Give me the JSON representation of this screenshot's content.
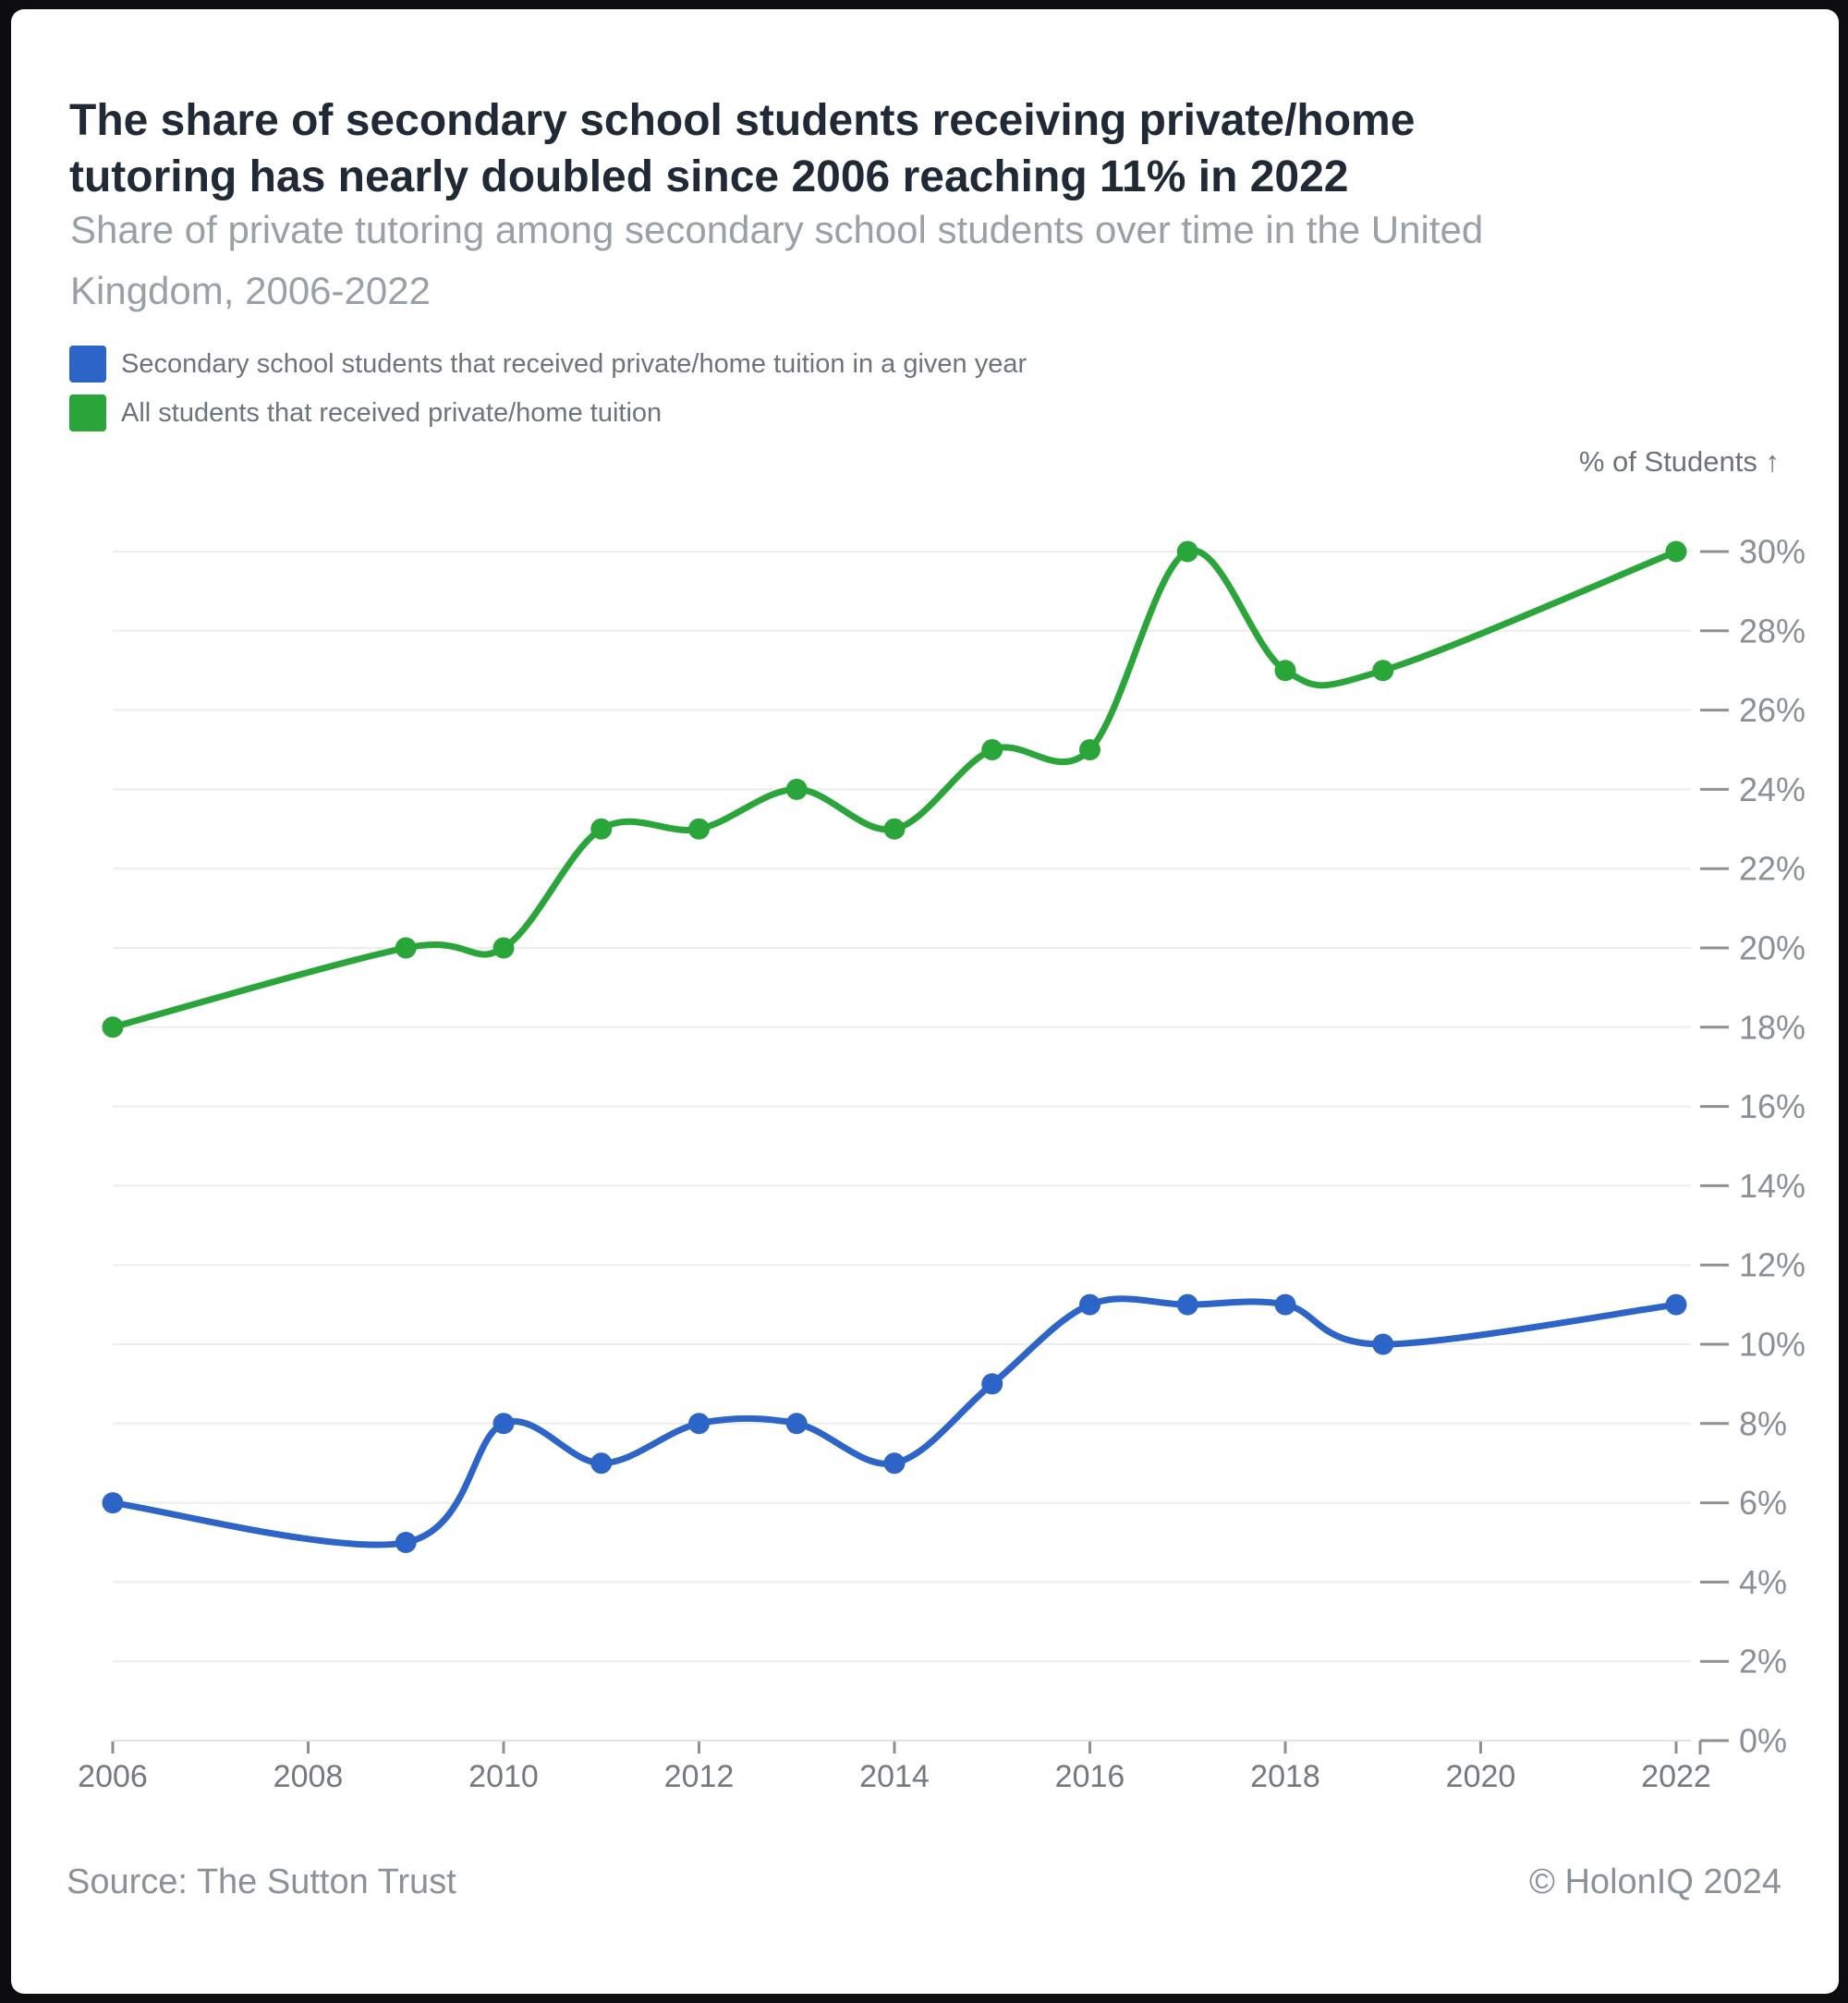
{
  "window": {
    "background": "#0d0d0f",
    "card_background": "#ffffff"
  },
  "header": {
    "title_line1": "The share of secondary school students receiving private/home",
    "title_line2": "tutoring has nearly doubled since 2006 reaching 11% in 2022",
    "subtitle_line1": "Share of private tutoring among secondary school students over time in the United",
    "subtitle_line2": "Kingdom, 2006-2022"
  },
  "chart_data": {
    "type": "line",
    "curve": "smooth",
    "x": [
      2006,
      2009,
      2010,
      2011,
      2012,
      2013,
      2014,
      2015,
      2016,
      2017,
      2018,
      2019,
      2022
    ],
    "series": [
      {
        "name": "Secondary school students that received private/home tuition in a given year",
        "color": "#2d64c8",
        "values": [
          6,
          5,
          8,
          7,
          8,
          8,
          7,
          9,
          11,
          11,
          11,
          10,
          11
        ]
      },
      {
        "name": "All students that received private/home tuition",
        "color": "#2aa53a",
        "values": [
          18,
          20,
          20,
          23,
          23,
          24,
          23,
          25,
          25,
          30,
          27,
          27,
          30
        ]
      }
    ],
    "y_axis_title": "% of Students ↑",
    "x_ticks": [
      "2006",
      "2008",
      "2010",
      "2012",
      "2014",
      "2016",
      "2018",
      "2020",
      "2022"
    ],
    "y_ticks": [
      "0%",
      "2%",
      "4%",
      "6%",
      "8%",
      "10%",
      "12%",
      "14%",
      "16%",
      "18%",
      "20%",
      "22%",
      "24%",
      "26%",
      "28%",
      "30%"
    ],
    "xlim": [
      2006,
      2022
    ],
    "ylim": [
      0,
      30
    ],
    "grid": "horizontal",
    "legend_position": "top-left",
    "grid_color": "#ededed",
    "axis_line_color": "#e2e2e2",
    "tick_color": "#909090",
    "y_label_color": "#8a9096",
    "x_label_color": "#74797f"
  },
  "footer": {
    "source": "Source: The Sutton Trust",
    "copyright": "© HolonIQ 2024"
  }
}
